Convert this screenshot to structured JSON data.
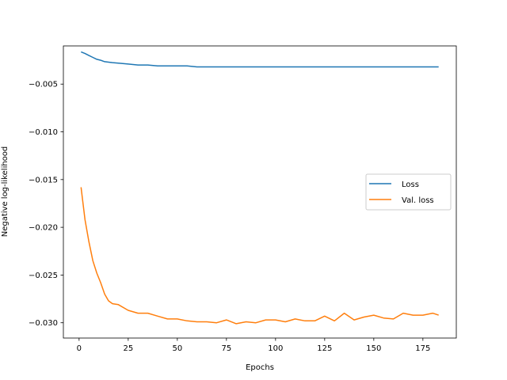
{
  "chart_data": {
    "type": "line",
    "title": "",
    "xlabel": "Epochs",
    "ylabel": "Negative log-likelihood",
    "xlim": [
      -8,
      192
    ],
    "ylim": [
      -0.0316,
      -0.001
    ],
    "xticks": [
      0,
      25,
      50,
      75,
      100,
      125,
      150,
      175
    ],
    "yticks": [
      -0.03,
      -0.025,
      -0.02,
      -0.015,
      -0.01,
      -0.005
    ],
    "ytick_labels": [
      "−0.030",
      "−0.025",
      "−0.020",
      "−0.015",
      "−0.010",
      "−0.005"
    ],
    "grid": false,
    "legend": "center-right",
    "x": [
      1,
      3,
      5,
      7,
      9,
      11,
      13,
      15,
      17,
      20,
      25,
      30,
      35,
      40,
      45,
      50,
      55,
      60,
      65,
      70,
      75,
      80,
      85,
      90,
      95,
      100,
      105,
      110,
      115,
      120,
      125,
      130,
      135,
      140,
      145,
      150,
      155,
      160,
      165,
      170,
      175,
      180,
      183
    ],
    "series": [
      {
        "name": "Loss",
        "color": "#1f77b4",
        "values": [
          -0.00163,
          -0.0018,
          -0.002,
          -0.0022,
          -0.0024,
          -0.0025,
          -0.00265,
          -0.0027,
          -0.00275,
          -0.0028,
          -0.0029,
          -0.003,
          -0.003,
          -0.0031,
          -0.0031,
          -0.0031,
          -0.0031,
          -0.0032,
          -0.0032,
          -0.0032,
          -0.0032,
          -0.0032,
          -0.0032,
          -0.0032,
          -0.0032,
          -0.0032,
          -0.0032,
          -0.0032,
          -0.0032,
          -0.0032,
          -0.0032,
          -0.0032,
          -0.0032,
          -0.0032,
          -0.0032,
          -0.0032,
          -0.0032,
          -0.0032,
          -0.0032,
          -0.0032,
          -0.0032,
          -0.0032,
          -0.0032
        ]
      },
      {
        "name": "Val. loss",
        "color": "#ff7f0e",
        "values": [
          -0.0158,
          -0.0192,
          -0.0215,
          -0.0235,
          -0.0248,
          -0.0258,
          -0.027,
          -0.0277,
          -0.028,
          -0.0281,
          -0.0287,
          -0.029,
          -0.029,
          -0.0293,
          -0.0296,
          -0.0296,
          -0.0298,
          -0.0299,
          -0.0299,
          -0.03,
          -0.0297,
          -0.0301,
          -0.0299,
          -0.03,
          -0.0297,
          -0.0297,
          -0.0299,
          -0.0296,
          -0.0298,
          -0.0298,
          -0.0293,
          -0.0298,
          -0.029,
          -0.0297,
          -0.0294,
          -0.0292,
          -0.0295,
          -0.0296,
          -0.029,
          -0.0292,
          -0.0292,
          -0.029,
          -0.0292
        ]
      }
    ]
  }
}
